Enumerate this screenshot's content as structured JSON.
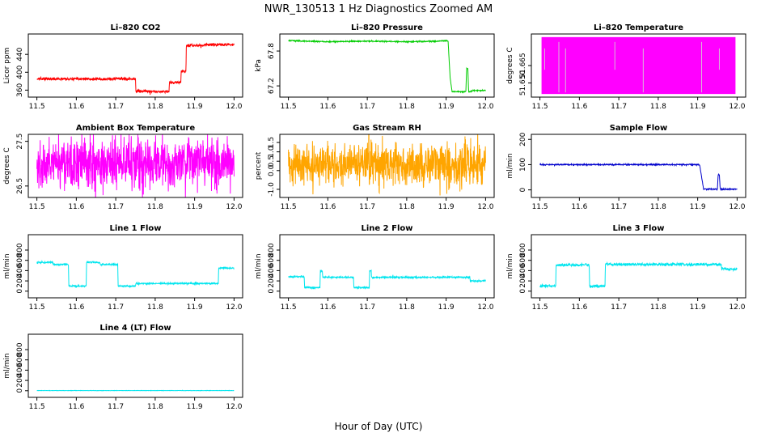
{
  "figure": {
    "title": "NWR_130513  1 Hz Diagnostics Zoomed AM",
    "xlabel": "Hour of Day (UTC)"
  },
  "chart_data": [
    {
      "id": "co2",
      "type": "line",
      "title": "Li–820 CO2",
      "ylabel": "Licor ppm",
      "color": "#ff0000",
      "xlim": [
        11.5,
        12.0
      ],
      "ylim": [
        350,
        480
      ],
      "xticks": [
        11.5,
        11.6,
        11.7,
        11.8,
        11.9,
        12.0
      ],
      "xtick_labels": [
        "11.5",
        "11.6",
        "11.7",
        "11.8",
        "11.9",
        "12.0"
      ],
      "yticks": [
        360,
        400,
        440
      ],
      "ytick_labels": [
        "360",
        "400",
        "440"
      ],
      "x": [
        11.5,
        11.75,
        11.751,
        11.835,
        11.836,
        11.865,
        11.866,
        11.878,
        11.879,
        11.925,
        11.926,
        12.0
      ],
      "y": [
        385,
        385,
        357,
        357,
        377,
        377,
        402,
        402,
        460,
        460,
        462,
        462
      ],
      "noise": 1.5
    },
    {
      "id": "pressure",
      "type": "line",
      "title": "Li–820 Pressure",
      "ylabel": "kPa",
      "color": "#00cc00",
      "xlim": [
        11.5,
        12.0
      ],
      "ylim": [
        67.05,
        68.05
      ],
      "xticks": [
        11.5,
        11.6,
        11.7,
        11.8,
        11.9,
        12.0
      ],
      "xtick_labels": [
        "11.5",
        "11.6",
        "11.7",
        "11.8",
        "11.9",
        "12.0"
      ],
      "yticks": [
        67.2,
        67.8
      ],
      "ytick_labels": [
        "67.2",
        "67.8"
      ],
      "x": [
        11.5,
        11.6,
        11.7,
        11.8,
        11.88,
        11.9,
        11.905,
        11.91,
        11.915,
        11.93,
        11.94,
        11.95,
        11.952,
        11.955,
        11.957,
        11.96,
        11.97,
        12.0
      ],
      "y": [
        67.98,
        67.96,
        67.97,
        67.96,
        67.97,
        67.98,
        67.97,
        67.35,
        67.1,
        67.1,
        67.1,
        67.1,
        67.5,
        67.5,
        67.1,
        67.1,
        67.12,
        67.12
      ],
      "noise": 0.005
    },
    {
      "id": "licor_temp",
      "type": "area",
      "title": "Li–820 Temperature",
      "ylabel": "degrees C",
      "color": "#ff00ff",
      "xlim": [
        11.5,
        12.0
      ],
      "ylim": [
        51.64,
        51.69
      ],
      "xticks": [
        11.5,
        11.6,
        11.7,
        11.8,
        11.9,
        12.0
      ],
      "xtick_labels": [
        "11.5",
        "11.6",
        "11.7",
        "11.8",
        "11.9",
        "12.0"
      ],
      "yticks": [
        51.65,
        51.665
      ],
      "ytick_labels": [
        "51.650",
        "51.665"
      ],
      "fill_range": [
        51.6405,
        51.6895
      ],
      "gap_x": [
        11.512,
        11.548,
        11.565,
        11.69,
        11.762,
        11.91,
        11.955
      ]
    },
    {
      "id": "box_temp",
      "type": "line",
      "title": "Ambient Box Temperature",
      "ylabel": "degrees C",
      "color": "#ff00ff",
      "xlim": [
        11.5,
        12.0
      ],
      "ylim": [
        26.3,
        27.6
      ],
      "xticks": [
        11.5,
        11.6,
        11.7,
        11.8,
        11.9,
        12.0
      ],
      "xtick_labels": [
        "11.5",
        "11.6",
        "11.7",
        "11.8",
        "11.9",
        "12.0"
      ],
      "yticks": [
        26.5,
        27.5
      ],
      "ytick_labels": [
        "26.5",
        "27.5"
      ],
      "x": [
        11.5,
        12.0
      ],
      "y": [
        27.0,
        27.0
      ],
      "noise": 0.28
    },
    {
      "id": "rh",
      "type": "line",
      "title": "Gas Stream RH",
      "ylabel": "percent",
      "color": "#ffa500",
      "xlim": [
        11.5,
        12.0
      ],
      "ylim": [
        -1.3,
        1.8
      ],
      "xticks": [
        11.5,
        11.6,
        11.7,
        11.8,
        11.9,
        12.0
      ],
      "xtick_labels": [
        "11.5",
        "11.6",
        "11.7",
        "11.8",
        "11.9",
        "12.0"
      ],
      "yticks": [
        -1.0,
        0.0,
        0.5,
        1.0,
        1.5
      ],
      "ytick_labels": [
        "-1.0",
        "0.0",
        "0.5",
        "1.0",
        "1.5"
      ],
      "x": [
        11.5,
        12.0
      ],
      "y": [
        0.3,
        0.3
      ],
      "noise": 0.55
    },
    {
      "id": "sample_flow",
      "type": "line",
      "title": "Sample Flow",
      "ylabel": "ml/min",
      "color": "#0000cc",
      "xlim": [
        11.5,
        12.0
      ],
      "ylim": [
        -20,
        210
      ],
      "xticks": [
        11.5,
        11.6,
        11.7,
        11.8,
        11.9,
        12.0
      ],
      "xtick_labels": [
        "11.5",
        "11.6",
        "11.7",
        "11.8",
        "11.9",
        "12.0"
      ],
      "yticks": [
        0,
        100,
        200
      ],
      "ytick_labels": [
        "0",
        "100",
        "200"
      ],
      "x": [
        11.5,
        11.905,
        11.91,
        11.915,
        11.95,
        11.952,
        11.955,
        11.957,
        11.96,
        12.0
      ],
      "y": [
        100,
        100,
        50,
        3,
        3,
        60,
        60,
        3,
        3,
        3
      ],
      "noise": 1.2
    },
    {
      "id": "line1",
      "type": "line",
      "title": "Line 1 Flow",
      "ylabel": "ml/min",
      "color": "#00e5ee",
      "xlim": [
        11.5,
        12.0
      ],
      "ylim": [
        -80,
        1050
      ],
      "xticks": [
        11.5,
        11.6,
        11.7,
        11.8,
        11.9,
        12.0
      ],
      "xtick_labels": [
        "11.5",
        "11.6",
        "11.7",
        "11.8",
        "11.9",
        "12.0"
      ],
      "yticks": [
        0,
        200,
        400,
        600,
        800
      ],
      "ytick_labels": [
        "0",
        "200",
        "400",
        "600",
        "800"
      ],
      "x": [
        11.5,
        11.54,
        11.541,
        11.58,
        11.581,
        11.625,
        11.626,
        11.66,
        11.661,
        11.705,
        11.706,
        11.75,
        11.751,
        11.96,
        11.961,
        12.0
      ],
      "y": [
        560,
        560,
        520,
        520,
        100,
        100,
        560,
        560,
        520,
        520,
        100,
        100,
        150,
        150,
        450,
        450
      ],
      "noise": 8
    },
    {
      "id": "line2",
      "type": "line",
      "title": "Line 2 Flow",
      "ylabel": "ml/min",
      "color": "#00e5ee",
      "xlim": [
        11.5,
        12.0
      ],
      "ylim": [
        -80,
        1050
      ],
      "xticks": [
        11.5,
        11.6,
        11.7,
        11.8,
        11.9,
        12.0
      ],
      "xtick_labels": [
        "11.5",
        "11.6",
        "11.7",
        "11.8",
        "11.9",
        "12.0"
      ],
      "yticks": [
        0,
        200,
        400,
        600,
        800
      ],
      "ytick_labels": [
        "0",
        "200",
        "400",
        "600",
        "800"
      ],
      "x": [
        11.5,
        11.54,
        11.541,
        11.58,
        11.581,
        11.586,
        11.587,
        11.665,
        11.666,
        11.705,
        11.706,
        11.71,
        11.711,
        11.96,
        11.961,
        12.0
      ],
      "y": [
        280,
        280,
        70,
        70,
        400,
        400,
        270,
        270,
        70,
        70,
        400,
        400,
        270,
        270,
        200,
        200
      ],
      "noise": 8
    },
    {
      "id": "line3",
      "type": "line",
      "title": "Line 3 Flow",
      "ylabel": "ml/min",
      "color": "#00e5ee",
      "xlim": [
        11.5,
        12.0
      ],
      "ylim": [
        -80,
        1050
      ],
      "xticks": [
        11.5,
        11.6,
        11.7,
        11.8,
        11.9,
        12.0
      ],
      "xtick_labels": [
        "11.5",
        "11.6",
        "11.7",
        "11.8",
        "11.9",
        "12.0"
      ],
      "yticks": [
        0,
        200,
        400,
        600,
        800
      ],
      "ytick_labels": [
        "0",
        "200",
        "400",
        "600",
        "800"
      ],
      "x": [
        11.5,
        11.54,
        11.541,
        11.625,
        11.626,
        11.665,
        11.666,
        11.96,
        11.961,
        12.0
      ],
      "y": [
        100,
        100,
        510,
        510,
        100,
        100,
        520,
        520,
        430,
        430
      ],
      "noise": 14
    },
    {
      "id": "line4",
      "type": "line",
      "title": "Line 4 (LT) Flow",
      "ylabel": "ml/min",
      "color": "#00e5ee",
      "xlim": [
        11.5,
        12.0
      ],
      "ylim": [
        -80,
        1050
      ],
      "xticks": [
        11.5,
        11.6,
        11.7,
        11.8,
        11.9,
        12.0
      ],
      "xtick_labels": [
        "11.5",
        "11.6",
        "11.7",
        "11.8",
        "11.9",
        "12.0"
      ],
      "yticks": [
        0,
        200,
        400,
        600,
        800
      ],
      "ytick_labels": [
        "0",
        "200",
        "400",
        "600",
        "800"
      ],
      "x": [
        11.5,
        12.0
      ],
      "y": [
        3,
        3
      ],
      "noise": 1.5
    }
  ]
}
